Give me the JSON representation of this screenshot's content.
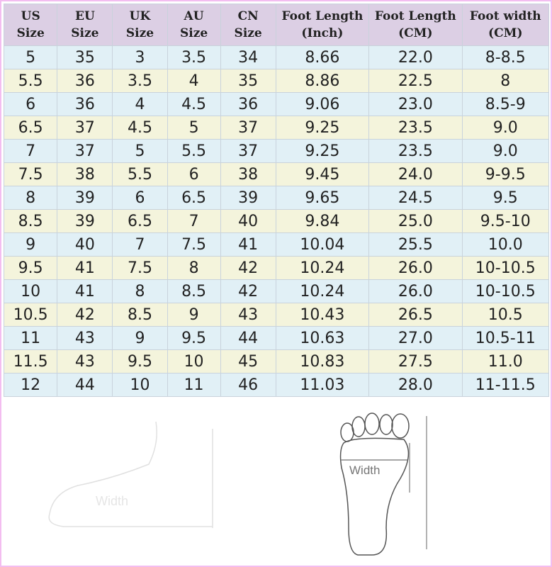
{
  "table": {
    "headers": [
      [
        "US",
        "Size"
      ],
      [
        "EU",
        "Size"
      ],
      [
        "UK",
        "Size"
      ],
      [
        "AU",
        "Size"
      ],
      [
        "CN",
        "Size"
      ],
      [
        "Foot Length",
        "(Inch)"
      ],
      [
        "Foot Length",
        "(CM)"
      ],
      [
        "Foot width",
        "(CM)"
      ]
    ],
    "rows": [
      [
        "5",
        "35",
        "3",
        "3.5",
        "34",
        "8.66",
        "22.0",
        "8-8.5"
      ],
      [
        "5.5",
        "36",
        "3.5",
        "4",
        "35",
        "8.86",
        "22.5",
        "8"
      ],
      [
        "6",
        "36",
        "4",
        "4.5",
        "36",
        "9.06",
        "23.0",
        "8.5-9"
      ],
      [
        "6.5",
        "37",
        "4.5",
        "5",
        "37",
        "9.25",
        "23.5",
        "9.0"
      ],
      [
        "7",
        "37",
        "5",
        "5.5",
        "37",
        "9.25",
        "23.5",
        "9.0"
      ],
      [
        "7.5",
        "38",
        "5.5",
        "6",
        "38",
        "9.45",
        "24.0",
        "9-9.5"
      ],
      [
        "8",
        "39",
        "6",
        "6.5",
        "39",
        "9.65",
        "24.5",
        "9.5"
      ],
      [
        "8.5",
        "39",
        "6.5",
        "7",
        "40",
        "9.84",
        "25.0",
        "9.5-10"
      ],
      [
        "9",
        "40",
        "7",
        "7.5",
        "41",
        "10.04",
        "25.5",
        "10.0"
      ],
      [
        "9.5",
        "41",
        "7.5",
        "8",
        "42",
        "10.24",
        "26.0",
        "10-10.5"
      ],
      [
        "10",
        "41",
        "8",
        "8.5",
        "42",
        "10.24",
        "26.0",
        "10-10.5"
      ],
      [
        "10.5",
        "42",
        "8.5",
        "9",
        "43",
        "10.43",
        "26.5",
        "10.5"
      ],
      [
        "11",
        "43",
        "9",
        "9.5",
        "44",
        "10.63",
        "27.0",
        "10.5-11"
      ],
      [
        "11.5",
        "43",
        "9.5",
        "10",
        "45",
        "10.83",
        "27.5",
        "11.0"
      ],
      [
        "12",
        "44",
        "10",
        "11",
        "46",
        "11.03",
        "28.0",
        "11-11.5"
      ]
    ]
  },
  "colors": {
    "header": "#dccfe4",
    "row_blue": "#e1f0f6",
    "row_yellow": "#f4f4dc",
    "border": "#f3bdf0"
  },
  "diagram": {
    "side_label": "Width",
    "sole_label": "Width"
  }
}
